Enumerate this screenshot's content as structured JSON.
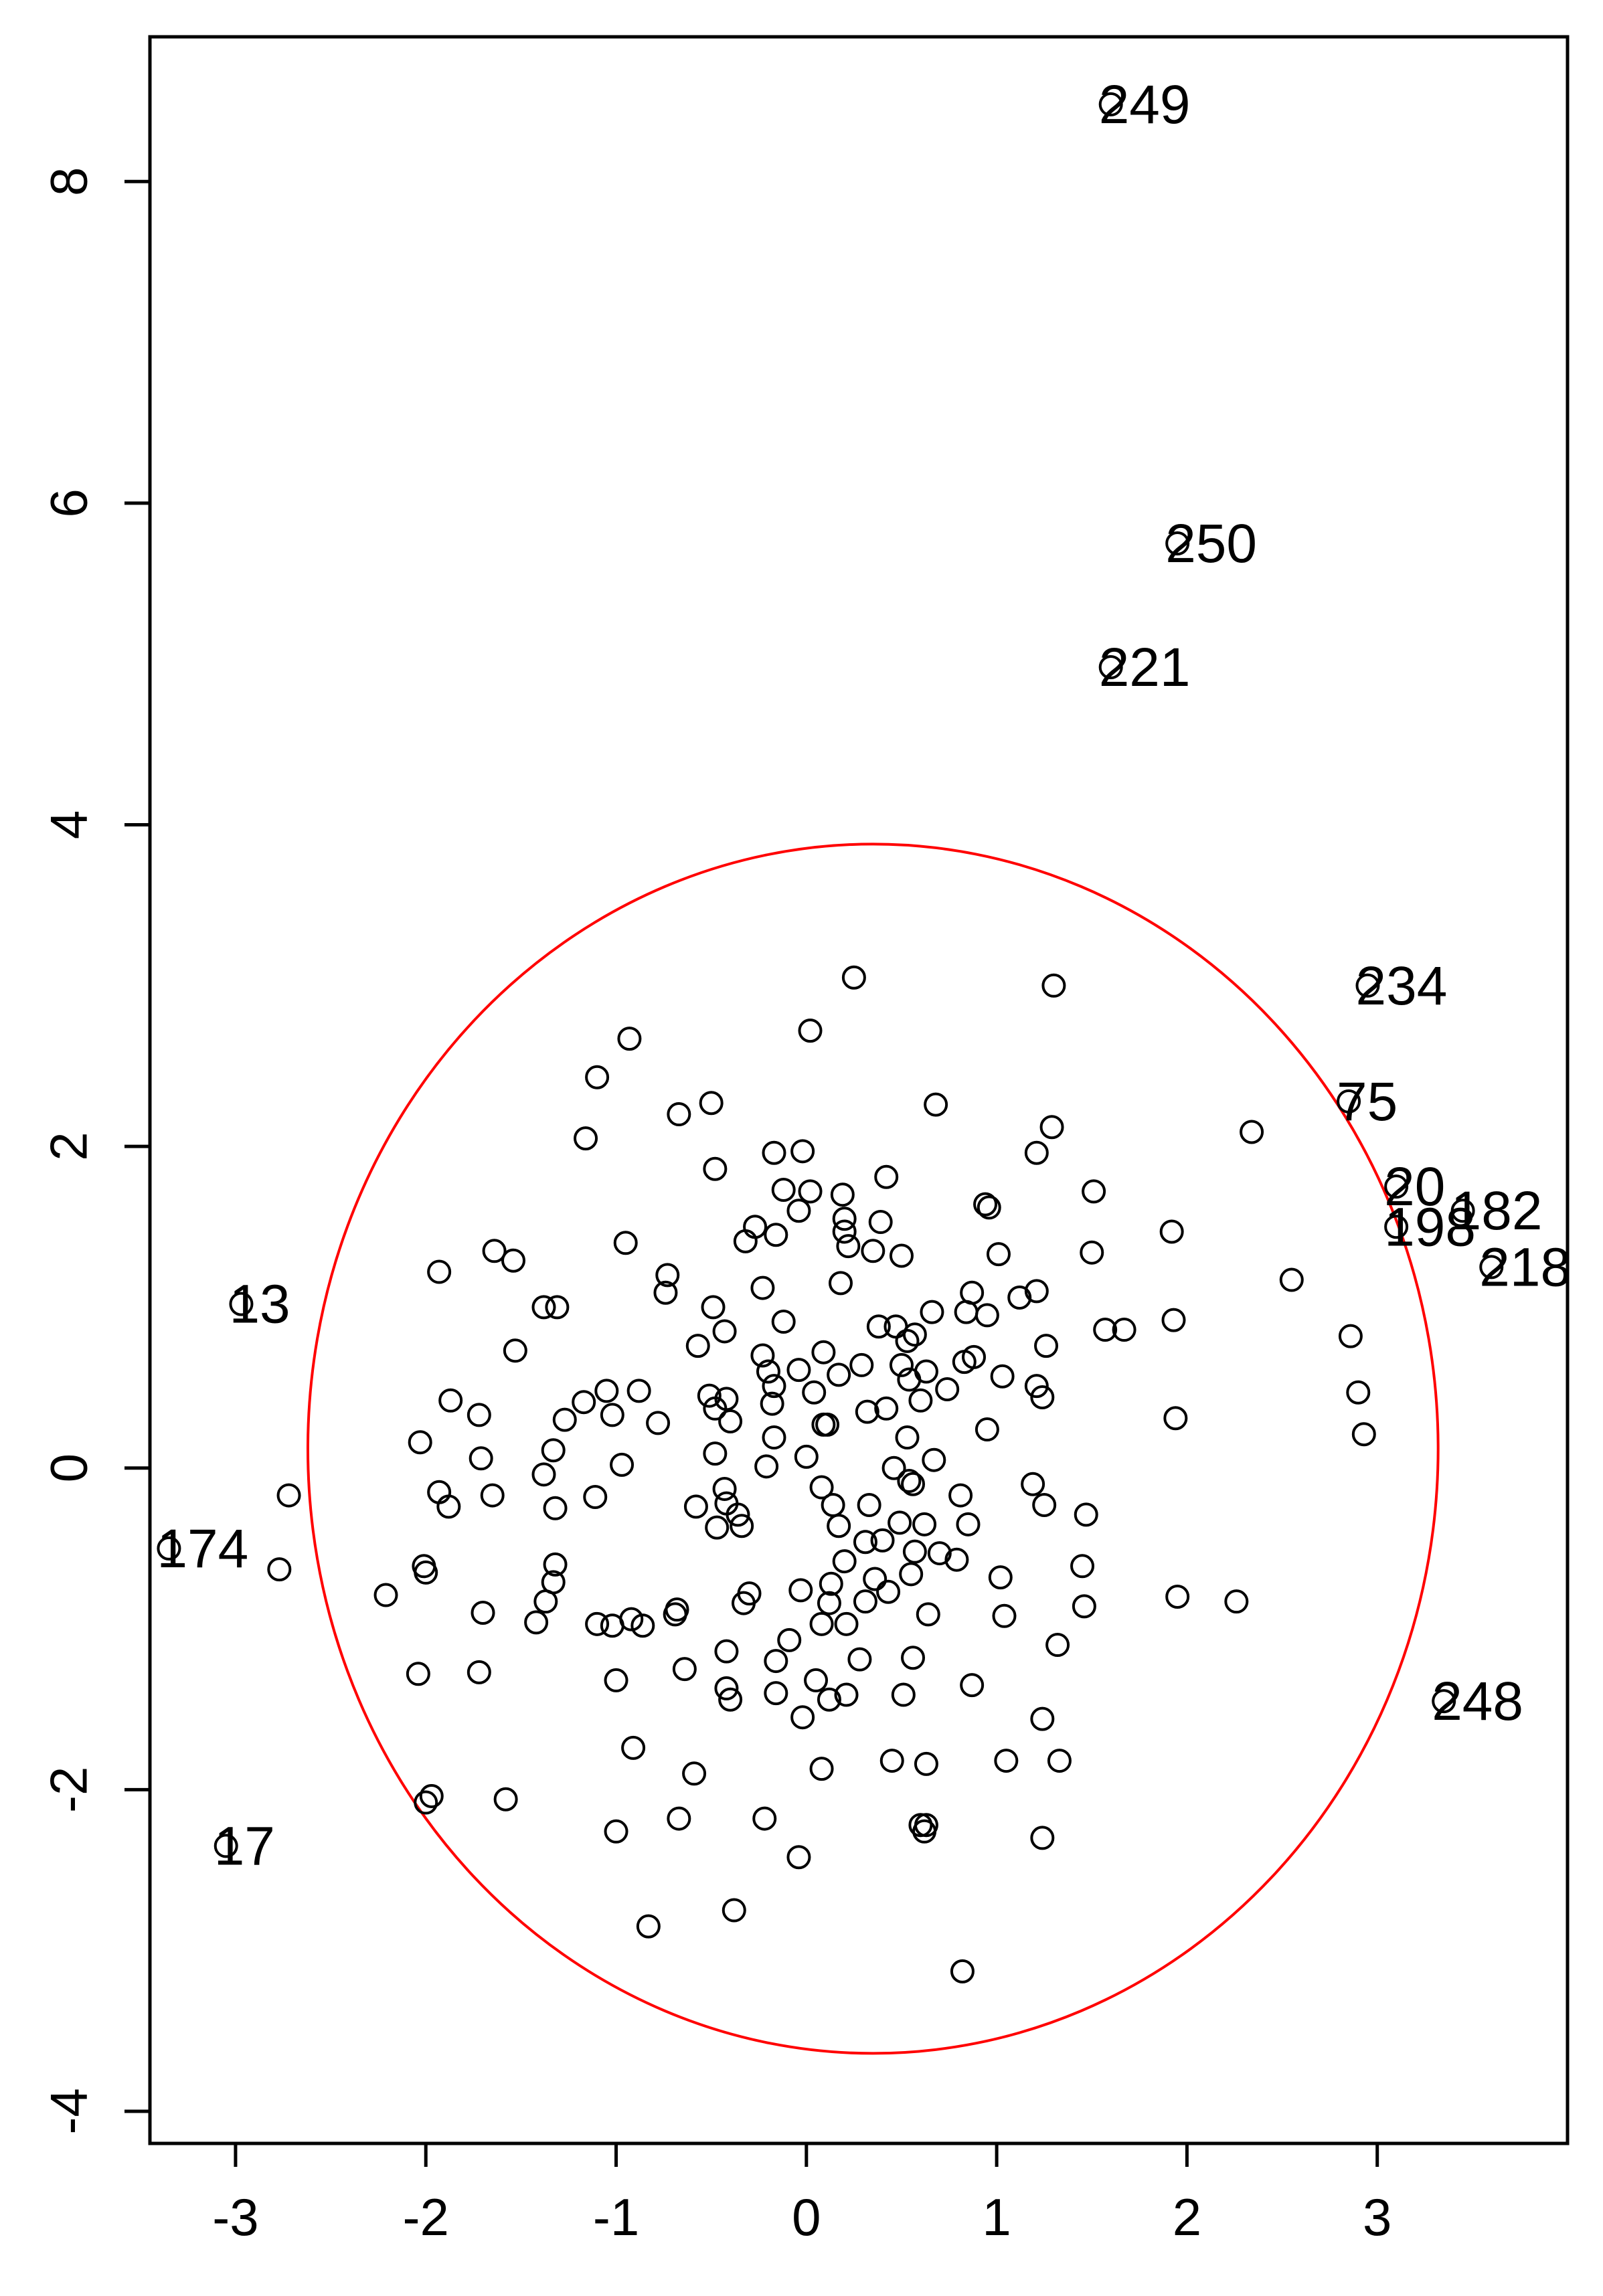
{
  "chart_data": {
    "type": "scatter",
    "title": "",
    "xlabel": "",
    "ylabel": "",
    "xlim": [
      -3.45,
      4.0
    ],
    "ylim": [
      -4.2,
      8.9
    ],
    "grid": false,
    "x_ticks": [
      {
        "value": -3,
        "label": "-3"
      },
      {
        "value": -2,
        "label": "-2"
      },
      {
        "value": -1,
        "label": "-1"
      },
      {
        "value": 0,
        "label": "0"
      },
      {
        "value": 1,
        "label": "1"
      },
      {
        "value": 2,
        "label": "2"
      },
      {
        "value": 3,
        "label": "3"
      }
    ],
    "y_ticks": [
      {
        "value": -4,
        "label": "-4"
      },
      {
        "value": -2,
        "label": "-2"
      },
      {
        "value": 0,
        "label": "0"
      },
      {
        "value": 2,
        "label": "2"
      },
      {
        "value": 4,
        "label": "4"
      },
      {
        "value": 6,
        "label": "6"
      },
      {
        "value": 8,
        "label": "8"
      }
    ],
    "ellipse": {
      "center": [
        0.35,
        0.12
      ],
      "rx": 2.97,
      "ry": 3.76,
      "color": "#ff0000"
    },
    "labeled_points": [
      {
        "label": "249",
        "x": 1.6,
        "y": 8.48
      },
      {
        "label": "250",
        "x": 1.95,
        "y": 5.75
      },
      {
        "label": "221",
        "x": 1.6,
        "y": 4.98
      },
      {
        "label": "234",
        "x": 2.95,
        "y": 3.0
      },
      {
        "label": "75",
        "x": 2.85,
        "y": 2.28
      },
      {
        "label": "20",
        "x": 3.1,
        "y": 1.75
      },
      {
        "label": "198",
        "x": 3.1,
        "y": 1.5
      },
      {
        "label": "182",
        "x": 3.45,
        "y": 1.6
      },
      {
        "label": "218",
        "x": 3.6,
        "y": 1.25
      },
      {
        "label": "13",
        "x": -2.97,
        "y": 1.02
      },
      {
        "label": "174",
        "x": -3.35,
        "y": -0.5
      },
      {
        "label": "17",
        "x": -3.05,
        "y": -2.35
      },
      {
        "label": "248",
        "x": 3.35,
        "y": -1.45
      }
    ],
    "points": [
      [
        0.25,
        3.05
      ],
      [
        1.3,
        3.0
      ],
      [
        0.02,
        2.72
      ],
      [
        -0.93,
        2.67
      ],
      [
        -1.1,
        2.43
      ],
      [
        -0.5,
        2.27
      ],
      [
        -0.67,
        2.2
      ],
      [
        0.68,
        2.26
      ],
      [
        1.29,
        2.12
      ],
      [
        2.34,
        2.09
      ],
      [
        -1.16,
        2.05
      ],
      [
        -0.17,
        1.96
      ],
      [
        -0.02,
        1.97
      ],
      [
        1.21,
        1.96
      ],
      [
        -0.48,
        1.86
      ],
      [
        0.42,
        1.81
      ],
      [
        -0.12,
        1.73
      ],
      [
        0.02,
        1.72
      ],
      [
        0.19,
        1.7
      ],
      [
        1.51,
        1.72
      ],
      [
        0.94,
        1.64
      ],
      [
        0.96,
        1.62
      ],
      [
        -0.04,
        1.6
      ],
      [
        0.2,
        1.55
      ],
      [
        -0.27,
        1.5
      ],
      [
        0.39,
        1.53
      ],
      [
        0.2,
        1.47
      ],
      [
        -0.16,
        1.45
      ],
      [
        1.92,
        1.47
      ],
      [
        -0.32,
        1.41
      ],
      [
        -0.95,
        1.4
      ],
      [
        0.22,
        1.38
      ],
      [
        0.5,
        1.32
      ],
      [
        0.35,
        1.35
      ],
      [
        1.01,
        1.33
      ],
      [
        1.5,
        1.34
      ],
      [
        -1.64,
        1.35
      ],
      [
        -1.54,
        1.29
      ],
      [
        -1.93,
        1.22
      ],
      [
        -0.73,
        1.2
      ],
      [
        0.18,
        1.15
      ],
      [
        -0.23,
        1.12
      ],
      [
        -0.74,
        1.09
      ],
      [
        2.55,
        1.17
      ],
      [
        0.87,
        1.09
      ],
      [
        1.21,
        1.1
      ],
      [
        -1.38,
        1.0
      ],
      [
        -1.31,
        1.0
      ],
      [
        -0.49,
        1.0
      ],
      [
        0.66,
        0.97
      ],
      [
        0.38,
        0.88
      ],
      [
        0.47,
        0.88
      ],
      [
        0.84,
        0.97
      ],
      [
        0.95,
        0.95
      ],
      [
        1.12,
        1.06
      ],
      [
        -0.12,
        0.91
      ],
      [
        0.57,
        0.83
      ],
      [
        0.53,
        0.79
      ],
      [
        0.09,
        0.72
      ],
      [
        1.57,
        0.86
      ],
      [
        1.67,
        0.86
      ],
      [
        1.93,
        0.92
      ],
      [
        2.86,
        0.82
      ],
      [
        -0.57,
        0.76
      ],
      [
        -0.43,
        0.85
      ],
      [
        -1.53,
        0.73
      ],
      [
        -0.23,
        0.7
      ],
      [
        0.5,
        0.64
      ],
      [
        0.83,
        0.66
      ],
      [
        0.88,
        0.69
      ],
      [
        1.26,
        0.76
      ],
      [
        0.29,
        0.64
      ],
      [
        -0.04,
        0.61
      ],
      [
        0.63,
        0.6
      ],
      [
        -0.2,
        0.6
      ],
      [
        1.03,
        0.57
      ],
      [
        0.17,
        0.58
      ],
      [
        0.54,
        0.55
      ],
      [
        -1.05,
        0.48
      ],
      [
        -0.88,
        0.48
      ],
      [
        -0.42,
        0.43
      ],
      [
        -0.51,
        0.45
      ],
      [
        -0.17,
        0.51
      ],
      [
        0.74,
        0.49
      ],
      [
        1.21,
        0.51
      ],
      [
        1.24,
        0.44
      ],
      [
        0.04,
        0.47
      ],
      [
        -1.17,
        0.41
      ],
      [
        -1.87,
        0.42
      ],
      [
        -0.18,
        0.4
      ],
      [
        0.32,
        0.35
      ],
      [
        0.6,
        0.42
      ],
      [
        0.42,
        0.37
      ],
      [
        -0.48,
        0.37
      ],
      [
        -1.02,
        0.33
      ],
      [
        -0.78,
        0.28
      ],
      [
        -1.27,
        0.3
      ],
      [
        -1.72,
        0.33
      ],
      [
        0.11,
        0.27
      ],
      [
        0.95,
        0.24
      ],
      [
        1.94,
        0.31
      ],
      [
        2.9,
        0.47
      ],
      [
        -0.4,
        0.29
      ],
      [
        0.09,
        0.27
      ],
      [
        -2.03,
        0.16
      ],
      [
        -0.17,
        0.19
      ],
      [
        0.53,
        0.19
      ],
      [
        2.93,
        0.21
      ],
      [
        -1.33,
        0.11
      ],
      [
        -0.48,
        0.09
      ],
      [
        0.0,
        0.07
      ],
      [
        0.67,
        0.05
      ],
      [
        -1.71,
        0.06
      ],
      [
        -0.97,
        0.02
      ],
      [
        0.46,
        0.0
      ],
      [
        -1.38,
        -0.04
      ],
      [
        -0.43,
        -0.13
      ],
      [
        -0.21,
        0.01
      ],
      [
        0.54,
        -0.08
      ],
      [
        1.19,
        -0.1
      ],
      [
        -1.93,
        -0.15
      ],
      [
        -1.65,
        -0.17
      ],
      [
        -1.11,
        -0.18
      ],
      [
        0.08,
        -0.12
      ],
      [
        0.56,
        -0.1
      ],
      [
        0.81,
        -0.17
      ],
      [
        -0.58,
        -0.24
      ],
      [
        -1.32,
        -0.25
      ],
      [
        -2.72,
        -0.17
      ],
      [
        -0.36,
        -0.29
      ],
      [
        -0.42,
        -0.22
      ],
      [
        -1.88,
        -0.24
      ],
      [
        0.14,
        -0.23
      ],
      [
        0.33,
        -0.23
      ],
      [
        1.25,
        -0.23
      ],
      [
        -0.34,
        -0.36
      ],
      [
        -0.47,
        -0.37
      ],
      [
        0.17,
        -0.36
      ],
      [
        0.49,
        -0.34
      ],
      [
        0.62,
        -0.35
      ],
      [
        0.85,
        -0.35
      ],
      [
        1.47,
        -0.29
      ],
      [
        0.4,
        -0.45
      ],
      [
        0.31,
        -0.46
      ],
      [
        0.57,
        -0.52
      ],
      [
        0.7,
        -0.53
      ],
      [
        0.2,
        -0.58
      ],
      [
        0.79,
        -0.57
      ],
      [
        -1.32,
        -0.6
      ],
      [
        -2.01,
        -0.61
      ],
      [
        -2.77,
        -0.63
      ],
      [
        1.45,
        -0.61
      ],
      [
        0.55,
        -0.66
      ],
      [
        0.36,
        -0.69
      ],
      [
        0.13,
        -0.72
      ],
      [
        1.02,
        -0.68
      ],
      [
        -2.0,
        -0.65
      ],
      [
        -1.33,
        -0.71
      ],
      [
        -0.3,
        -0.78
      ],
      [
        -0.03,
        -0.76
      ],
      [
        0.43,
        -0.77
      ],
      [
        -2.21,
        -0.79
      ],
      [
        1.95,
        -0.8
      ],
      [
        2.26,
        -0.83
      ],
      [
        -0.33,
        -0.84
      ],
      [
        0.12,
        -0.84
      ],
      [
        0.31,
        -0.83
      ],
      [
        1.46,
        -0.86
      ],
      [
        -1.37,
        -0.83
      ],
      [
        -0.68,
        -0.88
      ],
      [
        -1.7,
        -0.9
      ],
      [
        -0.69,
        -0.91
      ],
      [
        0.64,
        -0.91
      ],
      [
        1.04,
        -0.92
      ],
      [
        -0.92,
        -0.94
      ],
      [
        -1.42,
        -0.96
      ],
      [
        -1.1,
        -0.97
      ],
      [
        -1.02,
        -0.98
      ],
      [
        -0.86,
        -0.98
      ],
      [
        0.08,
        -0.97
      ],
      [
        0.21,
        -0.97
      ],
      [
        -0.09,
        -1.07
      ],
      [
        1.32,
        -1.1
      ],
      [
        -0.42,
        -1.14
      ],
      [
        0.56,
        -1.18
      ],
      [
        0.28,
        -1.19
      ],
      [
        -0.16,
        -1.2
      ],
      [
        -0.64,
        -1.25
      ],
      [
        -2.04,
        -1.28
      ],
      [
        -1.72,
        -1.27
      ],
      [
        -1.0,
        -1.32
      ],
      [
        0.05,
        -1.32
      ],
      [
        -0.42,
        -1.37
      ],
      [
        -0.16,
        -1.4
      ],
      [
        0.12,
        -1.44
      ],
      [
        -0.4,
        -1.44
      ],
      [
        0.21,
        -1.41
      ],
      [
        0.51,
        -1.41
      ],
      [
        0.87,
        -1.35
      ],
      [
        -0.02,
        -1.55
      ],
      [
        1.24,
        -1.56
      ],
      [
        -0.91,
        -1.74
      ],
      [
        0.45,
        -1.82
      ],
      [
        0.63,
        -1.84
      ],
      [
        1.05,
        -1.82
      ],
      [
        1.33,
        -1.82
      ],
      [
        -0.59,
        -1.9
      ],
      [
        0.08,
        -1.87
      ],
      [
        -1.58,
        -2.06
      ],
      [
        -1.97,
        -2.04
      ],
      [
        -2.0,
        -2.08
      ],
      [
        -0.67,
        -2.18
      ],
      [
        -0.22,
        -2.18
      ],
      [
        -1.0,
        -2.26
      ],
      [
        0.6,
        -2.22
      ],
      [
        0.63,
        -2.22
      ],
      [
        0.62,
        -2.26
      ],
      [
        1.24,
        -2.3
      ],
      [
        -0.04,
        -2.42
      ],
      [
        -0.38,
        -2.75
      ],
      [
        -0.83,
        -2.85
      ],
      [
        0.82,
        -3.13
      ]
    ]
  }
}
